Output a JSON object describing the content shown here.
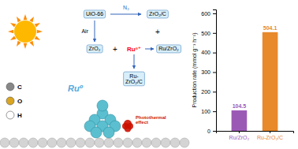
{
  "chart_data": {
    "type": "bar",
    "categories": [
      "Ru/ZrO₂",
      "Ru-ZrO₂/C"
    ],
    "values": [
      104.5,
      504.1
    ],
    "colors": [
      "#9B59B6",
      "#E8892A"
    ],
    "ylabel": "Production rate  (mmol g⁻¹ h⁻¹)",
    "ylim": [
      0,
      620
    ],
    "yticks": [
      0,
      100,
      200,
      300,
      400,
      500,
      600
    ],
    "data_labels": true,
    "grid": false,
    "annotations": [
      "UiO-66",
      "N₂",
      "ZrO₂/C",
      "Air",
      "ZrO₂",
      "+",
      "Ruⁿ⁺",
      "Ru/ZrO₂",
      "+",
      "Ru-\nZrO₂/C",
      "Ru⁰",
      "Photothermal\neffect",
      "C",
      "O",
      "H"
    ]
  }
}
